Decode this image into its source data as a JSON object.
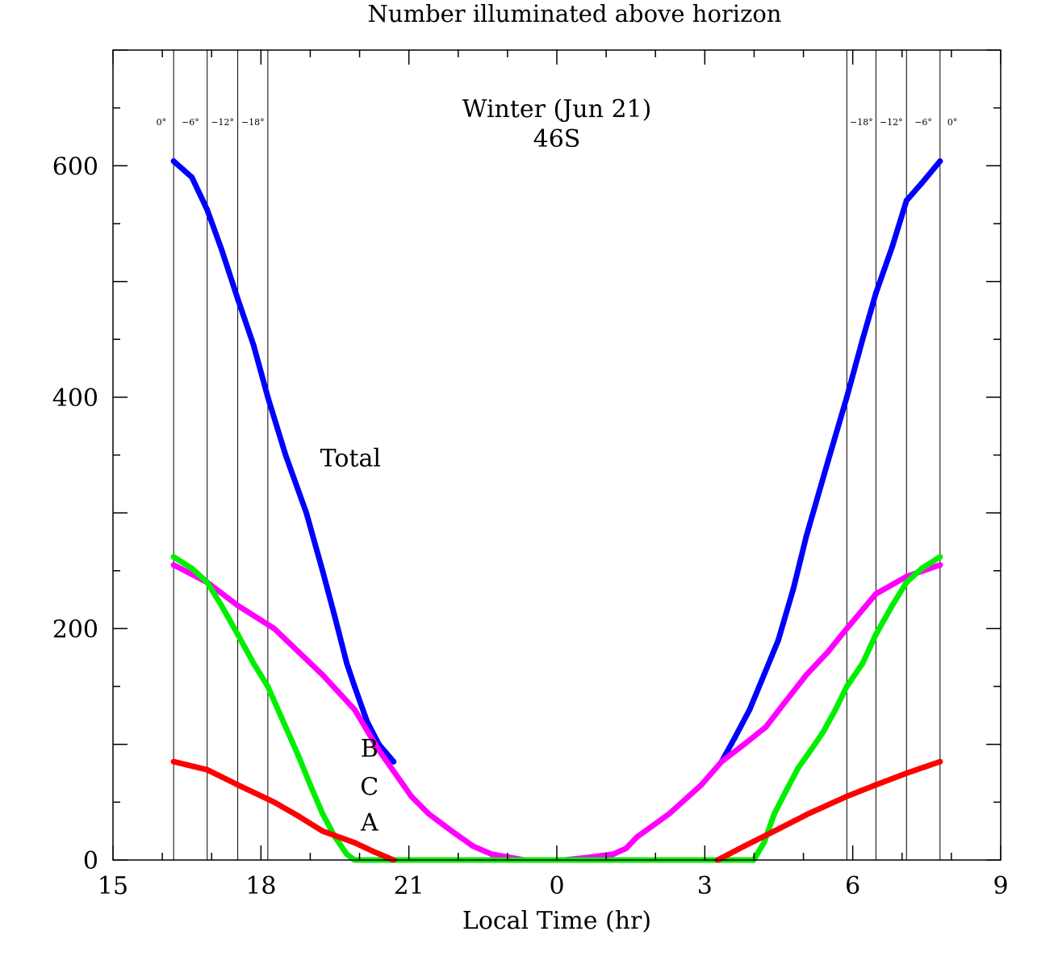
{
  "chart_data": {
    "type": "scatter",
    "title": "Number illuminated above horizon",
    "subtitle": [
      "Winter (Jun 21)",
      "46S"
    ],
    "xlabel": "Local Time (hr)",
    "ylabel": "",
    "xlim": [
      15,
      33
    ],
    "ylim": [
      0,
      700
    ],
    "xticks": [
      15,
      18,
      21,
      24,
      27,
      30,
      33
    ],
    "xtick_labels": [
      "15",
      "18",
      "21",
      "0",
      "3",
      "6",
      "9"
    ],
    "yticks": [
      0,
      200,
      400,
      600
    ],
    "ytick_labels": [
      "0",
      "200",
      "400",
      "600"
    ],
    "grid": false,
    "twilight_lines": [
      {
        "x": 16.23,
        "label": "0°"
      },
      {
        "x": 16.91,
        "label": "−6°"
      },
      {
        "x": 17.53,
        "label": "−12°"
      },
      {
        "x": 18.14,
        "label": "−18°"
      },
      {
        "x": 29.88,
        "label": "−18°"
      },
      {
        "x": 30.47,
        "label": "−12°"
      },
      {
        "x": 31.09,
        "label": "−6°"
      },
      {
        "x": 31.77,
        "label": "0°"
      }
    ],
    "series": [
      {
        "name": "Total",
        "color": "#0000ff",
        "label_at": [
          19.2,
          348
        ],
        "segments": [
          [
            [
              16.23,
              604
            ],
            [
              16.6,
              590
            ],
            [
              16.91,
              562
            ],
            [
              17.2,
              528
            ],
            [
              17.53,
              485
            ],
            [
              17.85,
              445
            ],
            [
              18.14,
              400
            ],
            [
              18.5,
              350
            ],
            [
              18.92,
              300
            ],
            [
              19.25,
              250
            ],
            [
              19.5,
              210
            ],
            [
              19.74,
              170
            ],
            [
              19.9,
              150
            ],
            [
              20.15,
              120
            ],
            [
              20.39,
              100
            ],
            [
              20.69,
              85
            ]
          ],
          [
            [
              27.34,
              85
            ],
            [
              27.6,
              105
            ],
            [
              27.91,
              130
            ],
            [
              28.2,
              160
            ],
            [
              28.49,
              190
            ],
            [
              28.8,
              235
            ],
            [
              29.06,
              280
            ],
            [
              29.5,
              345
            ],
            [
              29.88,
              400
            ],
            [
              30.2,
              450
            ],
            [
              30.47,
              490
            ],
            [
              30.8,
              530
            ],
            [
              31.09,
              570
            ],
            [
              31.4,
              585
            ],
            [
              31.77,
              604
            ]
          ]
        ]
      },
      {
        "name": "B",
        "color": "#ff00ff",
        "label_at": [
          20.2,
          97
        ],
        "segments": [
          [
            [
              16.23,
              255
            ],
            [
              16.91,
              240
            ],
            [
              17.53,
              220
            ],
            [
              18.27,
              200
            ],
            [
              18.76,
              180
            ],
            [
              19.25,
              160
            ],
            [
              19.9,
              130
            ],
            [
              20.39,
              95
            ],
            [
              21.05,
              55
            ],
            [
              21.4,
              40
            ],
            [
              21.87,
              25
            ],
            [
              22.3,
              12
            ],
            [
              22.68,
              5
            ],
            [
              23.34,
              0
            ],
            [
              24.15,
              0
            ],
            [
              24.6,
              2
            ],
            [
              25.14,
              5
            ],
            [
              25.4,
              10
            ],
            [
              25.63,
              20
            ],
            [
              26.28,
              40
            ],
            [
              26.93,
              65
            ],
            [
              27.34,
              85
            ],
            [
              27.8,
              100
            ],
            [
              28.24,
              115
            ],
            [
              28.6,
              135
            ],
            [
              29.06,
              160
            ],
            [
              29.5,
              180
            ],
            [
              29.88,
              200
            ],
            [
              30.47,
              230
            ],
            [
              31.09,
              245
            ],
            [
              31.77,
              255
            ]
          ]
        ]
      },
      {
        "name": "C",
        "color": "#00ee00",
        "label_at": [
          20.2,
          64
        ],
        "segments": [
          [
            [
              16.23,
              262
            ],
            [
              16.6,
              252
            ],
            [
              16.91,
              240
            ],
            [
              17.2,
              220
            ],
            [
              17.53,
              195
            ],
            [
              17.85,
              170
            ],
            [
              18.14,
              150
            ],
            [
              18.45,
              120
            ],
            [
              18.76,
              90
            ],
            [
              19.0,
              65
            ],
            [
              19.25,
              40
            ],
            [
              19.5,
              20
            ],
            [
              19.74,
              5
            ],
            [
              19.9,
              0
            ],
            [
              20.5,
              0
            ],
            [
              22,
              0
            ],
            [
              24,
              0
            ],
            [
              26,
              0
            ],
            [
              27.99,
              0
            ],
            [
              28.2,
              15
            ],
            [
              28.41,
              40
            ],
            [
              28.65,
              60
            ],
            [
              28.9,
              80
            ],
            [
              29.15,
              95
            ],
            [
              29.39,
              110
            ],
            [
              29.65,
              130
            ],
            [
              29.88,
              150
            ],
            [
              30.2,
              170
            ],
            [
              30.47,
              195
            ],
            [
              30.8,
              220
            ],
            [
              31.09,
              240
            ],
            [
              31.4,
              252
            ],
            [
              31.77,
              262
            ]
          ]
        ]
      },
      {
        "name": "A",
        "color": "#ff0000",
        "label_at": [
          20.2,
          33
        ],
        "segments": [
          [
            [
              16.23,
              85
            ],
            [
              16.91,
              78
            ],
            [
              17.53,
              65
            ],
            [
              18.27,
              50
            ],
            [
              18.76,
              38
            ],
            [
              19.25,
              25
            ],
            [
              19.9,
              15
            ],
            [
              20.3,
              7
            ],
            [
              20.69,
              0
            ]
          ],
          [
            [
              27.26,
              0
            ],
            [
              27.8,
              12
            ],
            [
              28.41,
              25
            ],
            [
              29.1,
              40
            ],
            [
              29.88,
              55
            ],
            [
              30.47,
              65
            ],
            [
              31.09,
              75
            ],
            [
              31.77,
              85
            ]
          ]
        ]
      }
    ]
  }
}
